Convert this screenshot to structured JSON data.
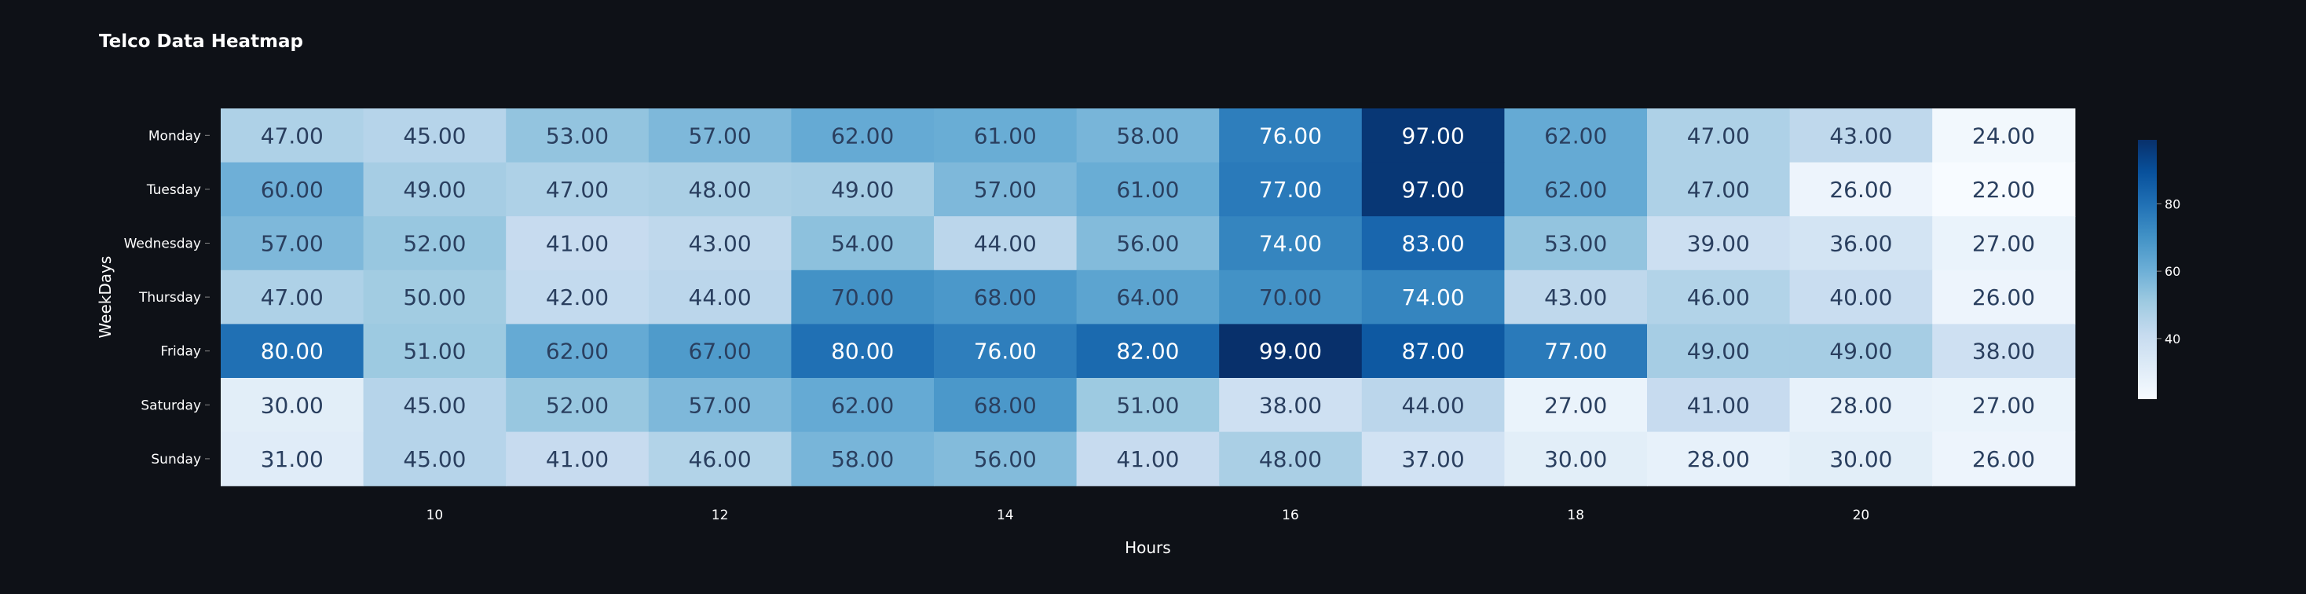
{
  "title": "Telco Data Heatmap",
  "colors": {
    "background": "#0e1117",
    "text": "#ffffff",
    "scale_low": "#f7fbff",
    "scale_high": "#08306b"
  },
  "chart_data": {
    "type": "heatmap",
    "title": "Telco Data Heatmap",
    "xlabel": "Hours",
    "ylabel": "WeekDays",
    "x": [
      9,
      10,
      11,
      12,
      13,
      14,
      15,
      16,
      17,
      18,
      19,
      20,
      21
    ],
    "x_ticks": [
      "10",
      "12",
      "14",
      "16",
      "18",
      "20"
    ],
    "y": [
      "Monday",
      "Tuesday",
      "Wednesday",
      "Thursday",
      "Friday",
      "Saturday",
      "Sunday"
    ],
    "values": [
      [
        47,
        45,
        53,
        57,
        62,
        61,
        58,
        76,
        97,
        62,
        47,
        43,
        24
      ],
      [
        60,
        49,
        47,
        48,
        49,
        57,
        61,
        77,
        97,
        62,
        47,
        26,
        22
      ],
      [
        57,
        52,
        41,
        43,
        54,
        44,
        56,
        74,
        83,
        53,
        39,
        36,
        27
      ],
      [
        47,
        50,
        42,
        44,
        70,
        68,
        64,
        70,
        74,
        43,
        46,
        40,
        26
      ],
      [
        80,
        51,
        62,
        67,
        80,
        76,
        82,
        99,
        87,
        77,
        49,
        49,
        38
      ],
      [
        30,
        45,
        52,
        57,
        62,
        68,
        51,
        38,
        44,
        27,
        41,
        28,
        27
      ],
      [
        31,
        45,
        41,
        46,
        58,
        56,
        41,
        48,
        37,
        30,
        28,
        30,
        26
      ]
    ],
    "value_format": "2 decimals",
    "colorscale": "Blues",
    "zlim": [
      22,
      99
    ],
    "colorbar_ticks": [
      "40",
      "60",
      "80"
    ],
    "grid": false
  }
}
